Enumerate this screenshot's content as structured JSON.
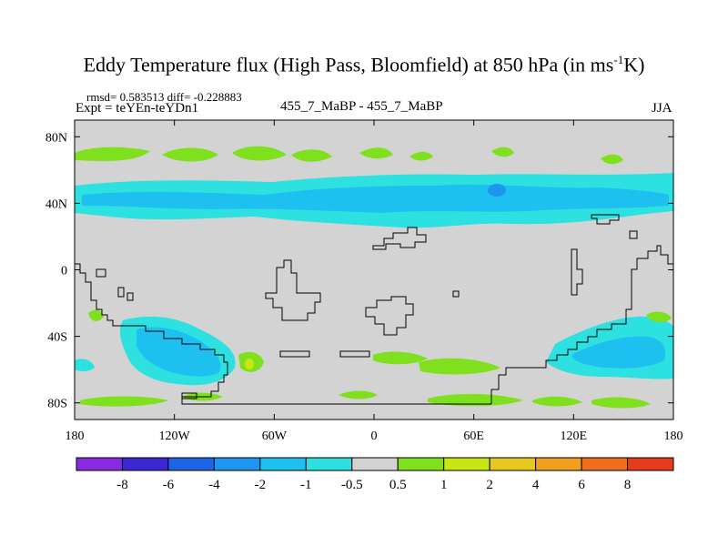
{
  "header": {
    "title_main": "Eddy Temperature flux (High Pass, Bloomfield) at 850 hPa (in ms",
    "title_sup": "-1",
    "title_end": "K)",
    "stats": "rmsd= 0.583513 diff= -0.228883",
    "experiment": "Expt = teYEn-teYDn1",
    "comparison": "455_7_MaBP - 455_7_MaBP",
    "season": "JJA"
  },
  "axes": {
    "y_ticks": [
      {
        "label": "80N",
        "lat": 80
      },
      {
        "label": "40N",
        "lat": 40
      },
      {
        "label": "0",
        "lat": 0
      },
      {
        "label": "40S",
        "lat": -40
      },
      {
        "label": "80S",
        "lat": -80
      }
    ],
    "x_ticks": [
      {
        "label": "180",
        "lon": -180
      },
      {
        "label": "120W",
        "lon": -120
      },
      {
        "label": "60W",
        "lon": -60
      },
      {
        "label": "0",
        "lon": 0
      },
      {
        "label": "60E",
        "lon": 60
      },
      {
        "label": "120E",
        "lon": 120
      },
      {
        "label": "180",
        "lon": 180
      }
    ],
    "lon_range": [
      -180,
      180
    ],
    "lat_range": [
      -90,
      90
    ]
  },
  "colorbar": {
    "colors": [
      "#8a2be2",
      "#3c28d2",
      "#1e64e6",
      "#1e96f0",
      "#1ec0f0",
      "#2de1e1",
      "#d3d3d3",
      "#7fe01e",
      "#c8e614",
      "#e6c81e",
      "#f0a01e",
      "#f06e1e",
      "#e63c1e"
    ],
    "labels": [
      "-8",
      "-6",
      "-4",
      "-2",
      "-1",
      "-0.5",
      "0.5",
      "1",
      "2",
      "4",
      "6",
      "8"
    ]
  },
  "palette": {
    "background": "#d3d3d3",
    "light_cyan": "#2de1e1",
    "cyan": "#1ec0f0",
    "blue": "#1e96f0",
    "green": "#7fe01e",
    "yellow": "#c8e614"
  }
}
